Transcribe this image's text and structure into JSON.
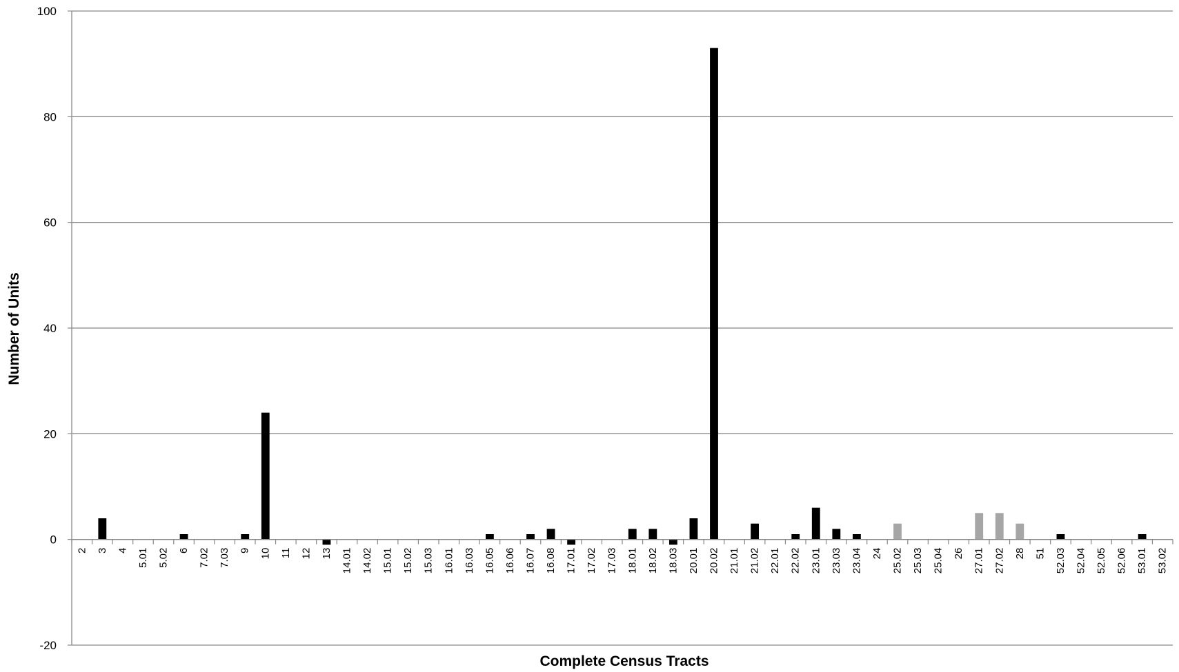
{
  "chart_data": {
    "type": "bar",
    "title": "",
    "xlabel": "Complete Census Tracts",
    "ylabel": "Number of Units",
    "ylim": [
      -20,
      100
    ],
    "yticks": [
      -20,
      0,
      20,
      40,
      60,
      80,
      100
    ],
    "grid": true,
    "legend": "none",
    "colors": {
      "black": "#000000",
      "gray": "#a6a6a6",
      "grid": "#888888"
    },
    "categories": [
      "2",
      "3",
      "4",
      "5.01",
      "5.02",
      "6",
      "7.02",
      "7.03",
      "9",
      "10",
      "11",
      "12",
      "13",
      "14.01",
      "14.02",
      "15.01",
      "15.02",
      "15.03",
      "16.01",
      "16.03",
      "16.05",
      "16.06",
      "16.07",
      "16.08",
      "17.01",
      "17.02",
      "17.03",
      "18.01",
      "18.02",
      "18.03",
      "20.01",
      "20.02",
      "21.01",
      "21.02",
      "22.01",
      "22.02",
      "23.01",
      "23.03",
      "23.04",
      "24",
      "25.02",
      "25.03",
      "25.04",
      "26",
      "27.01",
      "27.02",
      "28",
      "51",
      "52.03",
      "52.04",
      "52.05",
      "52.06",
      "53.01",
      "53.02"
    ],
    "values": [
      0,
      4,
      0,
      0,
      0,
      1,
      0,
      0,
      1,
      24,
      0,
      0,
      -1,
      0,
      0,
      0,
      0,
      0,
      0,
      0,
      1,
      0,
      1,
      2,
      -1,
      0,
      0,
      2,
      2,
      -1,
      4,
      93,
      0,
      3,
      0,
      1,
      6,
      2,
      1,
      0,
      3,
      0,
      0,
      0,
      5,
      5,
      3,
      0,
      1,
      0,
      0,
      0,
      1,
      0
    ],
    "bar_colors": [
      "black",
      "black",
      "black",
      "black",
      "black",
      "black",
      "black",
      "black",
      "black",
      "black",
      "black",
      "black",
      "black",
      "black",
      "black",
      "black",
      "black",
      "black",
      "black",
      "black",
      "black",
      "black",
      "black",
      "black",
      "black",
      "black",
      "black",
      "black",
      "black",
      "black",
      "black",
      "black",
      "black",
      "black",
      "black",
      "black",
      "black",
      "black",
      "black",
      "black",
      "gray",
      "gray",
      "gray",
      "gray",
      "gray",
      "gray",
      "gray",
      "gray",
      "black",
      "black",
      "black",
      "black",
      "black",
      "black"
    ]
  }
}
